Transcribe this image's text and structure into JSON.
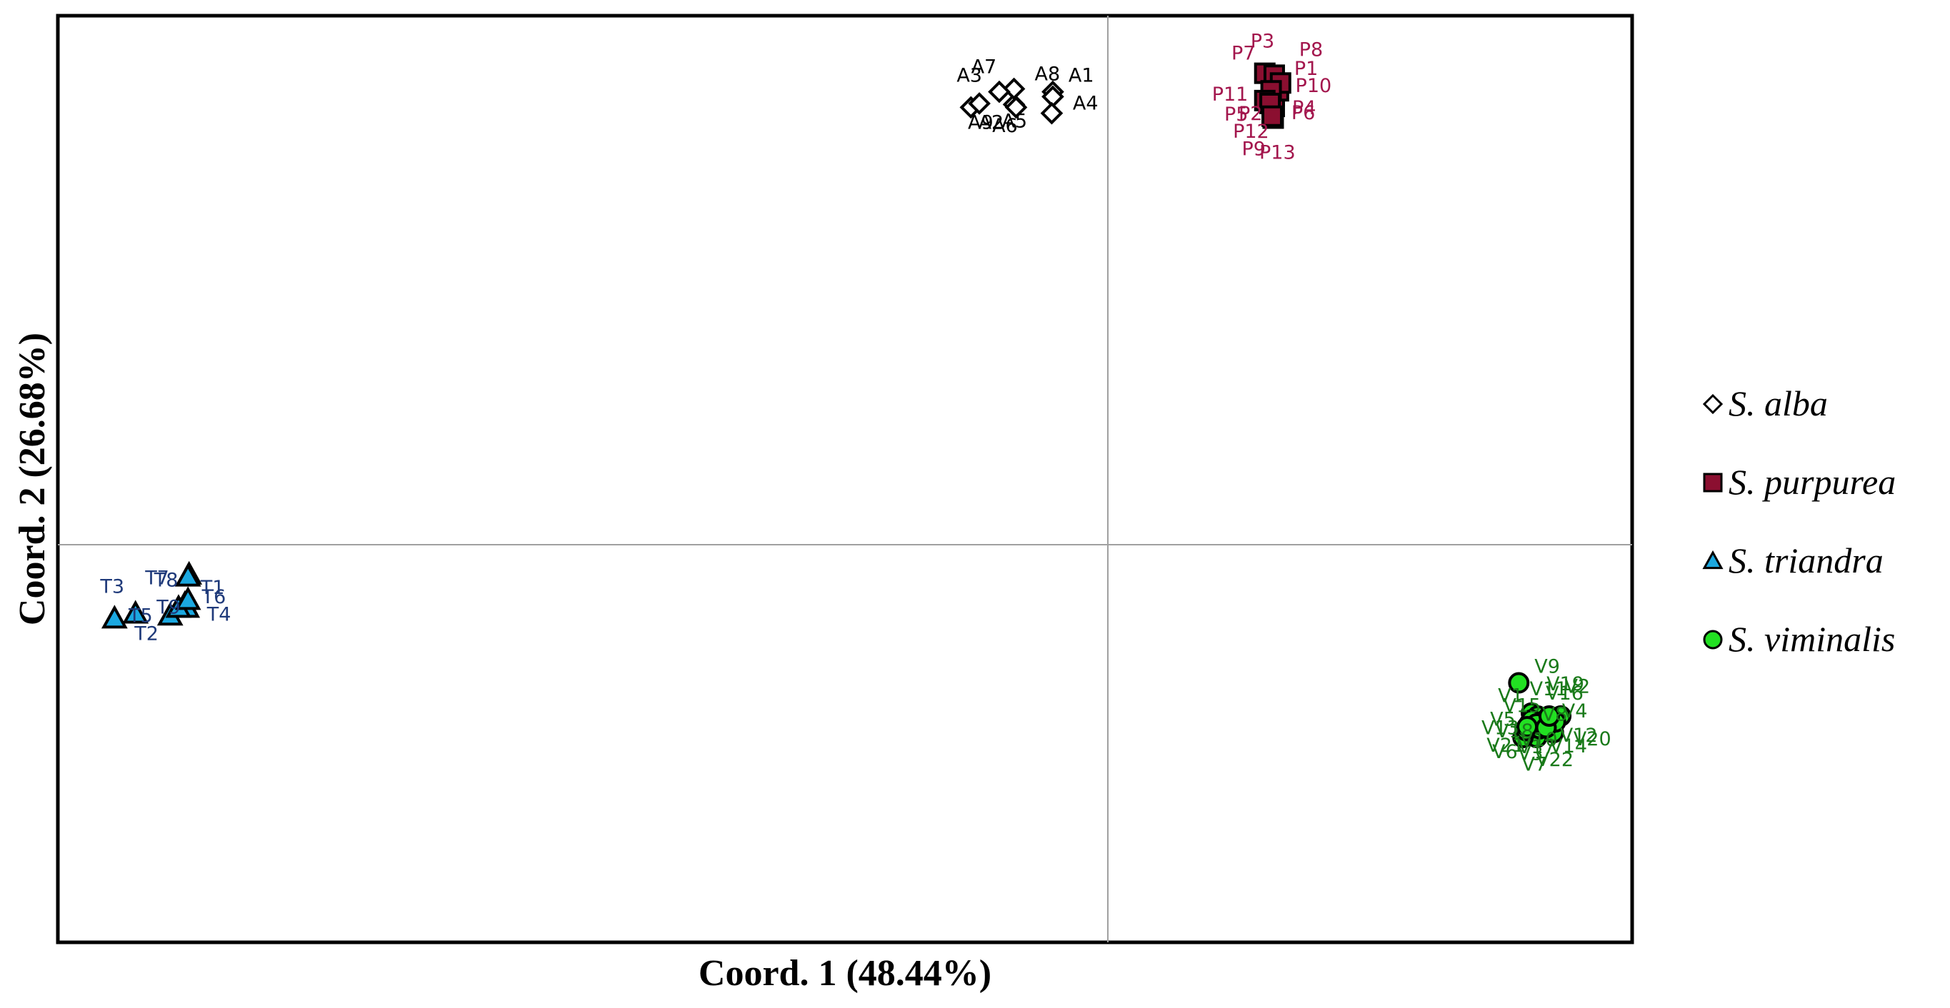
{
  "chart_data": {
    "type": "scatter",
    "xlabel": "Coord. 1 (48.44%)",
    "ylabel": "Coord. 2 (26.68%)",
    "xlim": [
      -1.0,
      0.5
    ],
    "ylim": [
      -0.55,
      0.4
    ],
    "grid": false,
    "reference_lines": {
      "x": 0,
      "y": 0
    },
    "legend_position": "right",
    "series": [
      {
        "name": "S. alba",
        "marker": "diamond",
        "fill": "#ffffff",
        "stroke": "#000000",
        "label_color": "#000000",
        "points": [
          {
            "label": "A1",
            "x": -0.052,
            "y": 0.322
          },
          {
            "label": "A2",
            "x": -0.089,
            "y": 0.309
          },
          {
            "label": "A3",
            "x": -0.13,
            "y": 0.306
          },
          {
            "label": "A4",
            "x": -0.052,
            "y": 0.317
          },
          {
            "label": "A5",
            "x": -0.053,
            "y": 0.3
          },
          {
            "label": "A6",
            "x": -0.122,
            "y": 0.31
          },
          {
            "label": "A7",
            "x": -0.089,
            "y": 0.325
          },
          {
            "label": "A8",
            "x": -0.087,
            "y": 0.306
          },
          {
            "label": "A9",
            "x": -0.103,
            "y": 0.322
          }
        ]
      },
      {
        "name": "S. purpurea",
        "marker": "square",
        "fill": "#8b0f30",
        "stroke": "#000000",
        "label_color": "#a3164d",
        "points": [
          {
            "label": "P1",
            "x": 0.163,
            "y": 0.329
          },
          {
            "label": "P2",
            "x": 0.159,
            "y": 0.318
          },
          {
            "label": "P3",
            "x": 0.15,
            "y": 0.341
          },
          {
            "label": "P4",
            "x": 0.157,
            "y": 0.312
          },
          {
            "label": "P5",
            "x": 0.159,
            "y": 0.307
          },
          {
            "label": "P6",
            "x": 0.163,
            "y": 0.323
          },
          {
            "label": "P7",
            "x": 0.159,
            "y": 0.339
          },
          {
            "label": "P8",
            "x": 0.165,
            "y": 0.331
          },
          {
            "label": "P9",
            "x": 0.158,
            "y": 0.295
          },
          {
            "label": "P10",
            "x": 0.156,
            "y": 0.323
          },
          {
            "label": "P11",
            "x": 0.15,
            "y": 0.313
          },
          {
            "label": "P12",
            "x": 0.155,
            "y": 0.31
          },
          {
            "label": "P13",
            "x": 0.157,
            "y": 0.297
          }
        ]
      },
      {
        "name": "S. triandra",
        "marker": "triangle",
        "fill": "#1ba8e0",
        "stroke": "#000000",
        "label_color": "#1f3a7a",
        "points": [
          {
            "label": "T1",
            "x": -0.879,
            "y": -0.203
          },
          {
            "label": "T2",
            "x": -0.893,
            "y": -0.215
          },
          {
            "label": "T3",
            "x": -0.946,
            "y": -0.218
          },
          {
            "label": "T4",
            "x": -0.877,
            "y": -0.207
          },
          {
            "label": "T5",
            "x": -0.885,
            "y": -0.207
          },
          {
            "label": "T6",
            "x": -0.875,
            "y": -0.173
          },
          {
            "label": "T7",
            "x": -0.876,
            "y": -0.199
          },
          {
            "label": "T8",
            "x": -0.926,
            "y": -0.213
          },
          {
            "label": "T9",
            "x": -0.876,
            "y": -0.175
          }
        ]
      },
      {
        "name": "S. viminalis",
        "marker": "circle",
        "fill": "#22e022",
        "stroke": "#000000",
        "label_color": "#1a7a1a",
        "points": [
          {
            "label": "V9",
            "x": 0.392,
            "y": -0.284
          },
          {
            "label": "V18",
            "x": 0.404,
            "y": -0.315
          },
          {
            "label": "V19",
            "x": 0.432,
            "y": -0.318
          },
          {
            "label": "V20",
            "x": 0.425,
            "y": -0.335
          },
          {
            "label": "V21",
            "x": 0.409,
            "y": -0.34
          },
          {
            "label": "V22",
            "x": 0.396,
            "y": -0.34
          },
          {
            "label": "V1",
            "x": 0.413,
            "y": -0.32
          },
          {
            "label": "V2",
            "x": 0.418,
            "y": -0.322
          },
          {
            "label": "V3",
            "x": 0.421,
            "y": -0.325
          },
          {
            "label": "V4",
            "x": 0.41,
            "y": -0.318
          },
          {
            "label": "V5",
            "x": 0.415,
            "y": -0.328
          },
          {
            "label": "V6",
            "x": 0.402,
            "y": -0.326
          },
          {
            "label": "V7",
            "x": 0.407,
            "y": -0.33
          },
          {
            "label": "V8",
            "x": 0.399,
            "y": -0.333
          },
          {
            "label": "V10",
            "x": 0.427,
            "y": -0.324
          },
          {
            "label": "V11",
            "x": 0.416,
            "y": -0.323
          },
          {
            "label": "V12",
            "x": 0.412,
            "y": -0.331
          },
          {
            "label": "V13",
            "x": 0.404,
            "y": -0.322
          },
          {
            "label": "V14",
            "x": 0.409,
            "y": -0.326
          },
          {
            "label": "V15",
            "x": 0.418,
            "y": -0.33
          },
          {
            "label": "V16",
            "x": 0.4,
            "y": -0.329
          },
          {
            "label": "V17",
            "x": 0.421,
            "y": -0.318
          }
        ]
      }
    ]
  }
}
